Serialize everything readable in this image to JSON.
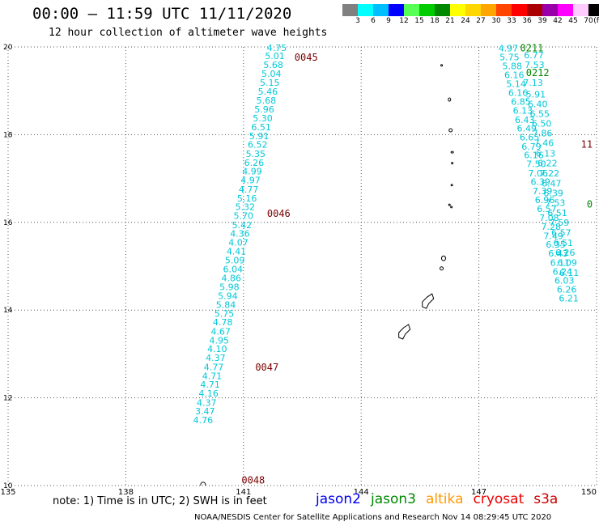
{
  "header": {
    "title": "00:00 – 11:59 UTC 11/11/2020",
    "subtitle": "12 hour collection of altimeter wave heights"
  },
  "color_scale": {
    "unit_label": "(ft)",
    "levels": [
      "3",
      "6",
      "9",
      "12",
      "15",
      "18",
      "21",
      "24",
      "27",
      "30",
      "33",
      "36",
      "39",
      "42",
      "45",
      "70"
    ],
    "colors": [
      "#808080",
      "#00ffff",
      "#00bfff",
      "#0000ff",
      "#55ff55",
      "#00cc00",
      "#008800",
      "#ffff00",
      "#ffd700",
      "#ffa500",
      "#ff4500",
      "#ff0000",
      "#aa0000",
      "#9900aa",
      "#ff00ff",
      "#ffccff",
      "#000000"
    ]
  },
  "map": {
    "x_ticks": [
      "135",
      "138",
      "141",
      "144",
      "147",
      "150"
    ],
    "y_ticks": [
      "20",
      "18",
      "16",
      "14",
      "12",
      "10"
    ],
    "lon_range": [
      135,
      150
    ],
    "lat_range": [
      10,
      20
    ],
    "track_color": "#00c8d8",
    "pass_label_color": "#7a0000",
    "jason3_color": "#008800"
  },
  "track_west": [
    {
      "v": "4.75",
      "lon": 141.85,
      "lat": 19.91
    },
    {
      "v": "5.01",
      "lon": 141.8,
      "lat": 19.72
    },
    {
      "v": "5.68",
      "lon": 141.76,
      "lat": 19.52
    },
    {
      "v": "5.04",
      "lon": 141.71,
      "lat": 19.32
    },
    {
      "v": "5.15",
      "lon": 141.67,
      "lat": 19.11
    },
    {
      "v": "5.46",
      "lon": 141.62,
      "lat": 18.91
    },
    {
      "v": "5.68",
      "lon": 141.58,
      "lat": 18.71
    },
    {
      "v": "5.96",
      "lon": 141.53,
      "lat": 18.51
    },
    {
      "v": "5.30",
      "lon": 141.49,
      "lat": 18.3
    },
    {
      "v": "6.51",
      "lon": 141.45,
      "lat": 18.1
    },
    {
      "v": "5.91",
      "lon": 141.4,
      "lat": 17.9
    },
    {
      "v": "6.52",
      "lon": 141.36,
      "lat": 17.7
    },
    {
      "v": "5.35",
      "lon": 141.31,
      "lat": 17.49
    },
    {
      "v": "6.26",
      "lon": 141.27,
      "lat": 17.29
    },
    {
      "v": "4.99",
      "lon": 141.22,
      "lat": 17.09
    },
    {
      "v": "4.97",
      "lon": 141.18,
      "lat": 16.89
    },
    {
      "v": "4.77",
      "lon": 141.13,
      "lat": 16.68
    },
    {
      "v": "5.16",
      "lon": 141.09,
      "lat": 16.48
    },
    {
      "v": "5.32",
      "lon": 141.04,
      "lat": 16.28
    },
    {
      "v": "5.70",
      "lon": 141.0,
      "lat": 16.08
    },
    {
      "v": "5.42",
      "lon": 140.96,
      "lat": 15.87
    },
    {
      "v": "4.36",
      "lon": 140.91,
      "lat": 15.67
    },
    {
      "v": "4.07",
      "lon": 140.87,
      "lat": 15.47
    },
    {
      "v": "4.41",
      "lon": 140.82,
      "lat": 15.27
    },
    {
      "v": "5.09",
      "lon": 140.78,
      "lat": 15.06
    },
    {
      "v": "6.04",
      "lon": 140.73,
      "lat": 14.86
    },
    {
      "v": "4.86",
      "lon": 140.69,
      "lat": 14.66
    },
    {
      "v": "5.98",
      "lon": 140.64,
      "lat": 14.46
    },
    {
      "v": "5.94",
      "lon": 140.6,
      "lat": 14.25
    },
    {
      "v": "5.84",
      "lon": 140.55,
      "lat": 14.05
    },
    {
      "v": "5.75",
      "lon": 140.51,
      "lat": 13.85
    },
    {
      "v": "4.78",
      "lon": 140.47,
      "lat": 13.65
    },
    {
      "v": "4.67",
      "lon": 140.42,
      "lat": 13.44
    },
    {
      "v": "4.95",
      "lon": 140.38,
      "lat": 13.24
    },
    {
      "v": "4.10",
      "lon": 140.33,
      "lat": 13.04
    },
    {
      "v": "4.37",
      "lon": 140.29,
      "lat": 12.84
    },
    {
      "v": "4.77",
      "lon": 140.24,
      "lat": 12.63
    },
    {
      "v": "4.71",
      "lon": 140.2,
      "lat": 12.43
    },
    {
      "v": "4.71",
      "lon": 140.15,
      "lat": 12.23
    },
    {
      "v": "4.16",
      "lon": 140.11,
      "lat": 12.03
    },
    {
      "v": "4.37",
      "lon": 140.06,
      "lat": 11.82
    },
    {
      "v": "3.47",
      "lon": 140.02,
      "lat": 11.62
    },
    {
      "v": "4.76",
      "lon": 139.97,
      "lat": 11.42
    }
  ],
  "pass_labels_west": [
    {
      "text": "0045",
      "lon": 142.3,
      "lat": 19.69
    },
    {
      "text": "0046",
      "lon": 141.6,
      "lat": 16.13
    },
    {
      "text": "0047",
      "lon": 141.3,
      "lat": 12.62
    },
    {
      "text": "0048",
      "lon": 140.95,
      "lat": 10.05
    }
  ],
  "track_east_a": [
    {
      "v": "4.97",
      "lon": 147.75,
      "lat": 19.9
    },
    {
      "v": "5.75",
      "lon": 147.78,
      "lat": 19.7
    },
    {
      "v": "5.88",
      "lon": 147.85,
      "lat": 19.49
    },
    {
      "v": "6.16",
      "lon": 147.9,
      "lat": 19.29
    },
    {
      "v": "5.14",
      "lon": 147.95,
      "lat": 19.09
    },
    {
      "v": "6.16",
      "lon": 148.0,
      "lat": 18.88
    },
    {
      "v": "6.85",
      "lon": 148.07,
      "lat": 18.68
    },
    {
      "v": "6.13",
      "lon": 148.12,
      "lat": 18.48
    },
    {
      "v": "6.43",
      "lon": 148.17,
      "lat": 18.27
    },
    {
      "v": "6.49",
      "lon": 148.22,
      "lat": 18.07
    },
    {
      "v": "6.65",
      "lon": 148.29,
      "lat": 17.87
    },
    {
      "v": "6.79",
      "lon": 148.34,
      "lat": 17.66
    },
    {
      "v": "6.16",
      "lon": 148.4,
      "lat": 17.46
    },
    {
      "v": "7.50",
      "lon": 148.46,
      "lat": 17.26
    },
    {
      "v": "7.06",
      "lon": 148.51,
      "lat": 17.05
    },
    {
      "v": "6.39",
      "lon": 148.57,
      "lat": 16.85
    },
    {
      "v": "7.39",
      "lon": 148.62,
      "lat": 16.64
    },
    {
      "v": "6.96",
      "lon": 148.68,
      "lat": 16.44
    },
    {
      "v": "6.57",
      "lon": 148.73,
      "lat": 16.24
    },
    {
      "v": "7.08",
      "lon": 148.79,
      "lat": 16.03
    },
    {
      "v": "7.28",
      "lon": 148.84,
      "lat": 15.83
    },
    {
      "v": "7.49",
      "lon": 148.9,
      "lat": 15.62
    },
    {
      "v": "6.35",
      "lon": 148.96,
      "lat": 15.42
    },
    {
      "v": "6.43",
      "lon": 149.02,
      "lat": 15.22
    },
    {
      "v": "6.11",
      "lon": 149.07,
      "lat": 15.01
    },
    {
      "v": "6.24",
      "lon": 149.13,
      "lat": 14.81
    },
    {
      "v": "6.03",
      "lon": 149.18,
      "lat": 14.6
    },
    {
      "v": "6.26",
      "lon": 149.24,
      "lat": 14.4
    },
    {
      "v": "6.21",
      "lon": 149.29,
      "lat": 14.2
    }
  ],
  "track_east_b": [
    {
      "v": "6.77",
      "lon": 148.4,
      "lat": 19.74
    },
    {
      "v": "7.53",
      "lon": 148.42,
      "lat": 19.52
    },
    {
      "v": "7.13",
      "lon": 148.38,
      "lat": 19.11
    },
    {
      "v": "5.91",
      "lon": 148.45,
      "lat": 18.85
    },
    {
      "v": "6.40",
      "lon": 148.5,
      "lat": 18.63
    },
    {
      "v": "6.55",
      "lon": 148.55,
      "lat": 18.4
    },
    {
      "v": "6.50",
      "lon": 148.6,
      "lat": 18.18
    },
    {
      "v": "7.86",
      "lon": 148.62,
      "lat": 17.96
    },
    {
      "v": "7.46",
      "lon": 148.66,
      "lat": 17.74
    },
    {
      "v": "6.13",
      "lon": 148.7,
      "lat": 17.5
    },
    {
      "v": "6.22",
      "lon": 148.75,
      "lat": 17.28
    },
    {
      "v": "7.22",
      "lon": 148.8,
      "lat": 17.05
    },
    {
      "v": "6.47",
      "lon": 148.85,
      "lat": 16.82
    },
    {
      "v": "6.39",
      "lon": 148.9,
      "lat": 16.6
    },
    {
      "v": "7.53",
      "lon": 148.95,
      "lat": 16.37
    },
    {
      "v": "6.51",
      "lon": 149.0,
      "lat": 16.14
    },
    {
      "v": "7.59",
      "lon": 149.05,
      "lat": 15.92
    },
    {
      "v": "6.57",
      "lon": 149.1,
      "lat": 15.69
    },
    {
      "v": "6.51",
      "lon": 149.15,
      "lat": 15.46
    },
    {
      "v": "6.26",
      "lon": 149.2,
      "lat": 15.24
    },
    {
      "v": "6.09",
      "lon": 149.25,
      "lat": 15.01
    },
    {
      "v": "6.11",
      "lon": 149.3,
      "lat": 14.78
    }
  ],
  "pass_labels_east": [
    {
      "text": "0211",
      "lon": 148.05,
      "lat": 19.9
    },
    {
      "text": "0212",
      "lon": 148.2,
      "lat": 19.34
    }
  ],
  "partial_labels_east": [
    {
      "text": "11",
      "lon": 149.6,
      "lat": 17.7,
      "color": "#7a0000"
    },
    {
      "text": "0",
      "lon": 149.75,
      "lat": 16.34,
      "color": "#008800"
    }
  ],
  "islands": [
    {
      "name": "island-farallon",
      "lon": 146.05,
      "lat": 19.58,
      "w": 2,
      "h": 2
    },
    {
      "name": "island-maug",
      "lon": 146.25,
      "lat": 18.8,
      "w": 3,
      "h": 4
    },
    {
      "name": "island-asuncion",
      "lon": 146.28,
      "lat": 18.1,
      "w": 4,
      "h": 4
    },
    {
      "name": "island-agrihan",
      "lon": 146.32,
      "lat": 17.6,
      "w": 3,
      "h": 2
    },
    {
      "name": "island-pagan",
      "lon": 146.32,
      "lat": 17.35,
      "w": 2,
      "h": 2
    },
    {
      "name": "island-alamagan",
      "lon": 146.31,
      "lat": 16.85,
      "w": 2,
      "h": 2
    },
    {
      "name": "island-sarigan",
      "lon": 146.25,
      "lat": 16.4,
      "w": 2,
      "h": 2
    },
    {
      "name": "island-anatahan",
      "lon": 146.3,
      "lat": 16.35,
      "w": 2,
      "h": 2
    },
    {
      "name": "island-saipan",
      "lon": 146.1,
      "lat": 15.18,
      "w": 5,
      "h": 6
    },
    {
      "name": "island-tinian",
      "lon": 146.05,
      "lat": 14.95,
      "w": 4,
      "h": 4
    },
    {
      "name": "island-rota",
      "lon": 145.6,
      "lat": 14.15,
      "w": 7,
      "h": 3
    },
    {
      "name": "island-guam",
      "lon": 145.0,
      "lat": 13.45,
      "w": 12,
      "h": 16
    }
  ],
  "footer": {
    "note": "note: 1) Time is in UTC; 2) SWH is in feet",
    "satellites": [
      {
        "name": "jason2",
        "color": "#0000ee"
      },
      {
        "name": "jason3",
        "color": "#008800"
      },
      {
        "name": "altika",
        "color": "#ff9900"
      },
      {
        "name": "cryosat",
        "color": "#ee0000"
      },
      {
        "name": "s3a",
        "color": "#cc0000"
      }
    ],
    "credit": "NOAA/NESDIS Center for Satellite Applications and Research    Nov 14 08:29:45 UTC 2020"
  }
}
